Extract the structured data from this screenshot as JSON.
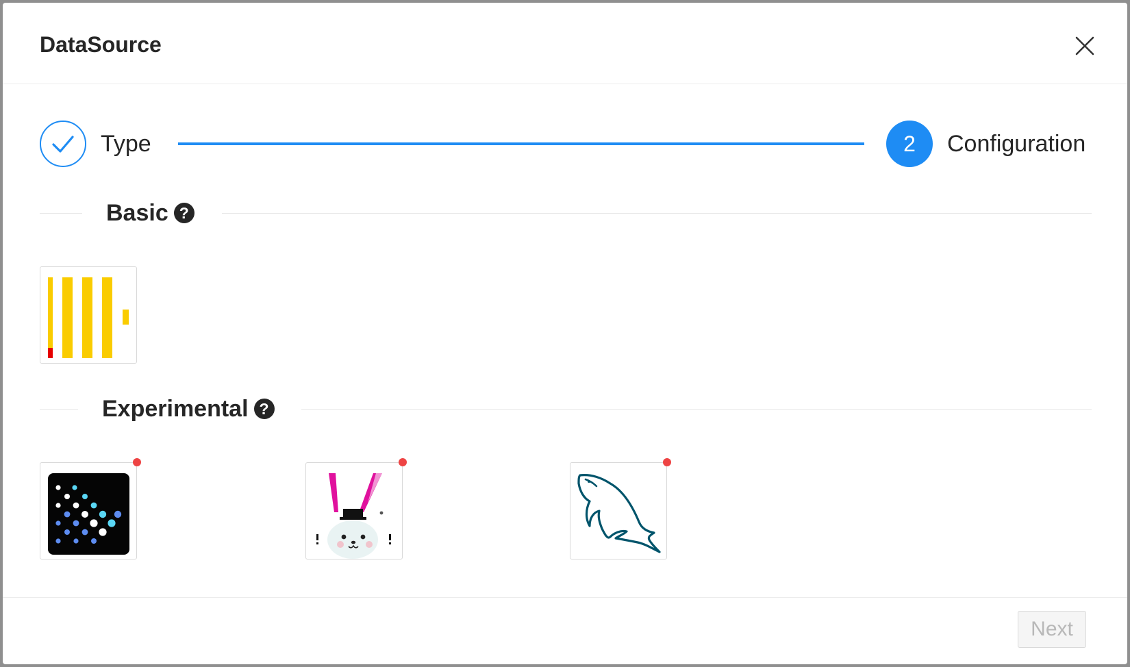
{
  "modal": {
    "title": "DataSource"
  },
  "steps": [
    {
      "label": "Type",
      "status": "finished"
    },
    {
      "number": "2",
      "label": "Configuration",
      "status": "current"
    }
  ],
  "sections": {
    "basic": {
      "title": "Basic",
      "help_icon": "question-circle-icon",
      "items": [
        {
          "icon": "clickhouse-logo-icon",
          "experimental": false
        }
      ]
    },
    "experimental": {
      "title": "Experimental",
      "help_icon": "question-circle-icon",
      "items": [
        {
          "icon": "kaggle-dots-logo-icon",
          "experimental": true
        },
        {
          "icon": "rabbit-logo-icon",
          "experimental": true
        },
        {
          "icon": "mysql-dolphin-logo-icon",
          "experimental": true
        }
      ]
    }
  },
  "footer": {
    "next_label": "Next",
    "next_disabled": true
  },
  "colors": {
    "primary": "#1e8cf4",
    "badge": "#ee4444",
    "clickhouse_yellow": "#facc00",
    "clickhouse_red": "#e60000",
    "rabbit_ear": "#e0119d",
    "mysql_teal": "#00546b"
  }
}
